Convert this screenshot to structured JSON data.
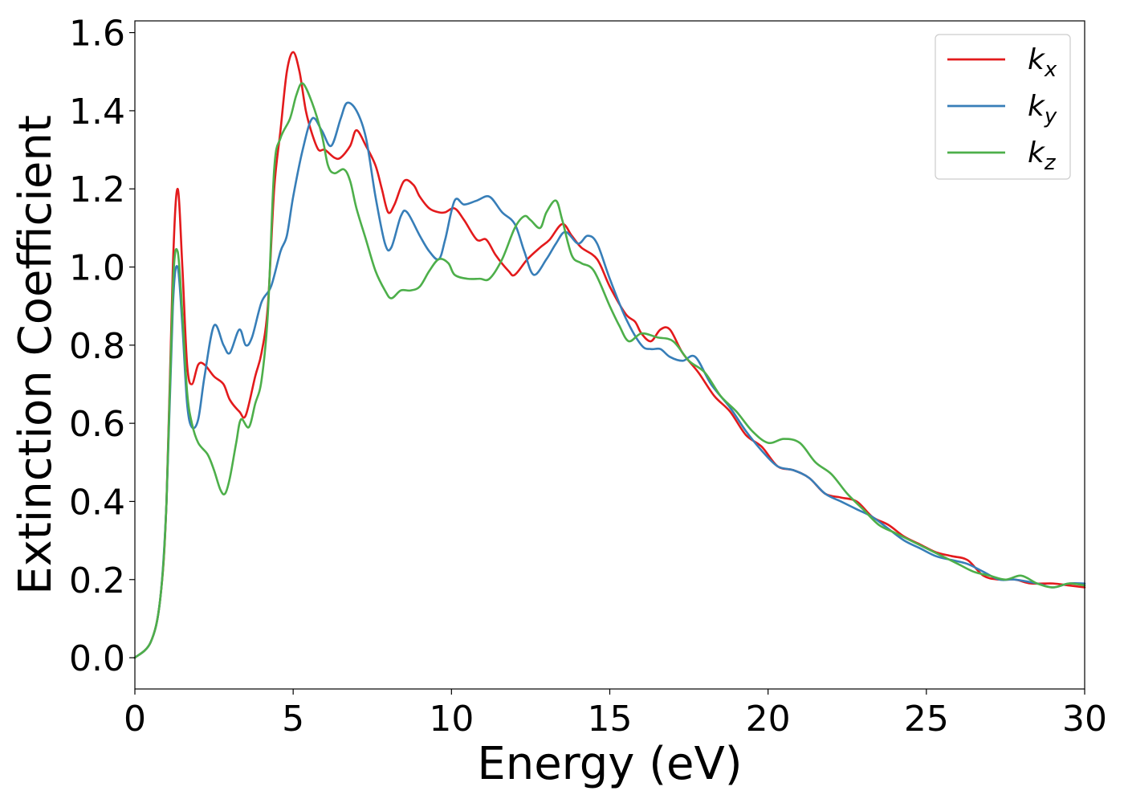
{
  "chart_data": {
    "type": "line",
    "xlabel": "Energy (eV)",
    "ylabel": "Extinction Coefficient",
    "xlim": [
      0,
      30
    ],
    "ylim": [
      -0.08,
      1.63
    ],
    "x_ticks": [
      "0",
      "5",
      "10",
      "15",
      "20",
      "25",
      "30"
    ],
    "y_ticks": [
      "0.0",
      "0.2",
      "0.4",
      "0.6",
      "0.8",
      "1.0",
      "1.2",
      "1.4",
      "1.6"
    ],
    "grid": false,
    "legend_position": "top-right",
    "series": [
      {
        "name": "k_x",
        "legend_base": "k",
        "legend_sub": "x",
        "color": "#e31a1c",
        "points": [
          [
            0,
            0.0
          ],
          [
            0.5,
            0.04
          ],
          [
            0.8,
            0.15
          ],
          [
            1.0,
            0.4
          ],
          [
            1.2,
            1.0
          ],
          [
            1.35,
            1.2
          ],
          [
            1.5,
            1.0
          ],
          [
            1.65,
            0.75
          ],
          [
            1.8,
            0.7
          ],
          [
            2.0,
            0.75
          ],
          [
            2.2,
            0.75
          ],
          [
            2.5,
            0.72
          ],
          [
            2.8,
            0.7
          ],
          [
            3.0,
            0.66
          ],
          [
            3.3,
            0.63
          ],
          [
            3.5,
            0.62
          ],
          [
            3.8,
            0.72
          ],
          [
            4.0,
            0.78
          ],
          [
            4.2,
            0.9
          ],
          [
            4.4,
            1.2
          ],
          [
            4.6,
            1.35
          ],
          [
            4.8,
            1.5
          ],
          [
            5.0,
            1.55
          ],
          [
            5.2,
            1.5
          ],
          [
            5.4,
            1.4
          ],
          [
            5.6,
            1.34
          ],
          [
            5.8,
            1.3
          ],
          [
            6.0,
            1.3
          ],
          [
            6.3,
            1.28
          ],
          [
            6.5,
            1.28
          ],
          [
            6.8,
            1.31
          ],
          [
            7.0,
            1.35
          ],
          [
            7.3,
            1.31
          ],
          [
            7.6,
            1.26
          ],
          [
            7.8,
            1.2
          ],
          [
            8.0,
            1.14
          ],
          [
            8.2,
            1.16
          ],
          [
            8.5,
            1.22
          ],
          [
            8.8,
            1.21
          ],
          [
            9.0,
            1.18
          ],
          [
            9.3,
            1.15
          ],
          [
            9.6,
            1.14
          ],
          [
            9.8,
            1.14
          ],
          [
            10.1,
            1.15
          ],
          [
            10.4,
            1.12
          ],
          [
            10.8,
            1.07
          ],
          [
            11.1,
            1.07
          ],
          [
            11.4,
            1.03
          ],
          [
            11.8,
            0.99
          ],
          [
            12.0,
            0.98
          ],
          [
            12.4,
            1.02
          ],
          [
            12.8,
            1.05
          ],
          [
            13.1,
            1.07
          ],
          [
            13.5,
            1.11
          ],
          [
            13.8,
            1.08
          ],
          [
            14.1,
            1.05
          ],
          [
            14.6,
            1.02
          ],
          [
            15.0,
            0.95
          ],
          [
            15.5,
            0.88
          ],
          [
            15.8,
            0.86
          ],
          [
            16.0,
            0.83
          ],
          [
            16.3,
            0.81
          ],
          [
            16.6,
            0.84
          ],
          [
            16.9,
            0.84
          ],
          [
            17.3,
            0.78
          ],
          [
            17.8,
            0.73
          ],
          [
            18.3,
            0.67
          ],
          [
            18.8,
            0.63
          ],
          [
            19.3,
            0.57
          ],
          [
            19.8,
            0.54
          ],
          [
            20.3,
            0.49
          ],
          [
            20.8,
            0.48
          ],
          [
            21.3,
            0.46
          ],
          [
            21.8,
            0.42
          ],
          [
            22.3,
            0.41
          ],
          [
            22.8,
            0.4
          ],
          [
            23.3,
            0.36
          ],
          [
            23.8,
            0.34
          ],
          [
            24.3,
            0.31
          ],
          [
            24.8,
            0.29
          ],
          [
            25.3,
            0.27
          ],
          [
            25.8,
            0.26
          ],
          [
            26.3,
            0.25
          ],
          [
            26.8,
            0.21
          ],
          [
            27.3,
            0.2
          ],
          [
            27.8,
            0.2
          ],
          [
            28.3,
            0.19
          ],
          [
            29.0,
            0.19
          ],
          [
            29.5,
            0.185
          ],
          [
            30,
            0.18
          ]
        ]
      },
      {
        "name": "k_y",
        "legend_base": "k",
        "legend_sub": "y",
        "color": "#377eb8",
        "points": [
          [
            0,
            0.0
          ],
          [
            0.5,
            0.04
          ],
          [
            0.8,
            0.15
          ],
          [
            1.0,
            0.4
          ],
          [
            1.2,
            0.9
          ],
          [
            1.35,
            1.0
          ],
          [
            1.5,
            0.85
          ],
          [
            1.65,
            0.65
          ],
          [
            1.8,
            0.59
          ],
          [
            2.0,
            0.61
          ],
          [
            2.2,
            0.72
          ],
          [
            2.5,
            0.85
          ],
          [
            2.8,
            0.8
          ],
          [
            3.0,
            0.78
          ],
          [
            3.3,
            0.84
          ],
          [
            3.5,
            0.8
          ],
          [
            3.7,
            0.82
          ],
          [
            4.0,
            0.91
          ],
          [
            4.3,
            0.95
          ],
          [
            4.6,
            1.04
          ],
          [
            4.8,
            1.08
          ],
          [
            5.0,
            1.18
          ],
          [
            5.3,
            1.3
          ],
          [
            5.6,
            1.38
          ],
          [
            5.9,
            1.35
          ],
          [
            6.2,
            1.31
          ],
          [
            6.5,
            1.38
          ],
          [
            6.7,
            1.42
          ],
          [
            7.0,
            1.4
          ],
          [
            7.3,
            1.33
          ],
          [
            7.6,
            1.18
          ],
          [
            7.9,
            1.06
          ],
          [
            8.1,
            1.05
          ],
          [
            8.4,
            1.13
          ],
          [
            8.6,
            1.14
          ],
          [
            9.0,
            1.08
          ],
          [
            9.3,
            1.04
          ],
          [
            9.6,
            1.02
          ],
          [
            9.8,
            1.07
          ],
          [
            10.1,
            1.17
          ],
          [
            10.4,
            1.16
          ],
          [
            10.8,
            1.17
          ],
          [
            11.2,
            1.18
          ],
          [
            11.6,
            1.14
          ],
          [
            12.0,
            1.11
          ],
          [
            12.3,
            1.04
          ],
          [
            12.6,
            0.98
          ],
          [
            13.0,
            1.02
          ],
          [
            13.3,
            1.06
          ],
          [
            13.6,
            1.09
          ],
          [
            14.0,
            1.06
          ],
          [
            14.3,
            1.08
          ],
          [
            14.6,
            1.06
          ],
          [
            15.0,
            0.97
          ],
          [
            15.5,
            0.87
          ],
          [
            16.0,
            0.8
          ],
          [
            16.3,
            0.79
          ],
          [
            16.6,
            0.79
          ],
          [
            16.9,
            0.77
          ],
          [
            17.3,
            0.76
          ],
          [
            17.7,
            0.77
          ],
          [
            18.2,
            0.7
          ],
          [
            18.8,
            0.64
          ],
          [
            19.3,
            0.58
          ],
          [
            19.8,
            0.53
          ],
          [
            20.3,
            0.49
          ],
          [
            20.8,
            0.48
          ],
          [
            21.3,
            0.46
          ],
          [
            21.8,
            0.42
          ],
          [
            22.3,
            0.4
          ],
          [
            22.8,
            0.38
          ],
          [
            23.3,
            0.36
          ],
          [
            23.8,
            0.33
          ],
          [
            24.3,
            0.3
          ],
          [
            24.8,
            0.28
          ],
          [
            25.3,
            0.26
          ],
          [
            25.8,
            0.25
          ],
          [
            26.3,
            0.24
          ],
          [
            26.8,
            0.22
          ],
          [
            27.3,
            0.2
          ],
          [
            27.8,
            0.2
          ],
          [
            28.5,
            0.19
          ],
          [
            29.0,
            0.18
          ],
          [
            29.5,
            0.19
          ],
          [
            30,
            0.19
          ]
        ]
      },
      {
        "name": "k_z",
        "legend_base": "k",
        "legend_sub": "z",
        "color": "#4daf4a",
        "points": [
          [
            0,
            0.0
          ],
          [
            0.5,
            0.04
          ],
          [
            0.8,
            0.15
          ],
          [
            1.0,
            0.4
          ],
          [
            1.2,
            0.95
          ],
          [
            1.35,
            1.04
          ],
          [
            1.5,
            0.88
          ],
          [
            1.65,
            0.68
          ],
          [
            1.8,
            0.6
          ],
          [
            2.0,
            0.55
          ],
          [
            2.3,
            0.52
          ],
          [
            2.5,
            0.48
          ],
          [
            2.7,
            0.43
          ],
          [
            2.85,
            0.42
          ],
          [
            3.0,
            0.46
          ],
          [
            3.2,
            0.55
          ],
          [
            3.35,
            0.61
          ],
          [
            3.6,
            0.59
          ],
          [
            3.8,
            0.65
          ],
          [
            4.0,
            0.71
          ],
          [
            4.2,
            0.88
          ],
          [
            4.4,
            1.25
          ],
          [
            4.6,
            1.33
          ],
          [
            4.9,
            1.38
          ],
          [
            5.1,
            1.44
          ],
          [
            5.3,
            1.47
          ],
          [
            5.6,
            1.42
          ],
          [
            5.9,
            1.34
          ],
          [
            6.1,
            1.26
          ],
          [
            6.3,
            1.24
          ],
          [
            6.6,
            1.25
          ],
          [
            6.8,
            1.22
          ],
          [
            7.0,
            1.15
          ],
          [
            7.3,
            1.07
          ],
          [
            7.6,
            0.99
          ],
          [
            7.9,
            0.94
          ],
          [
            8.1,
            0.92
          ],
          [
            8.4,
            0.94
          ],
          [
            8.7,
            0.94
          ],
          [
            9.0,
            0.95
          ],
          [
            9.3,
            0.99
          ],
          [
            9.6,
            1.02
          ],
          [
            9.9,
            1.01
          ],
          [
            10.1,
            0.98
          ],
          [
            10.5,
            0.97
          ],
          [
            10.9,
            0.97
          ],
          [
            11.2,
            0.97
          ],
          [
            11.6,
            1.02
          ],
          [
            12.0,
            1.1
          ],
          [
            12.3,
            1.13
          ],
          [
            12.5,
            1.12
          ],
          [
            12.8,
            1.1
          ],
          [
            13.0,
            1.14
          ],
          [
            13.3,
            1.17
          ],
          [
            13.5,
            1.12
          ],
          [
            13.8,
            1.03
          ],
          [
            14.1,
            1.01
          ],
          [
            14.5,
            0.99
          ],
          [
            15.0,
            0.9
          ],
          [
            15.3,
            0.85
          ],
          [
            15.6,
            0.81
          ],
          [
            16.0,
            0.83
          ],
          [
            16.5,
            0.82
          ],
          [
            17.0,
            0.81
          ],
          [
            17.5,
            0.76
          ],
          [
            18.0,
            0.73
          ],
          [
            18.5,
            0.67
          ],
          [
            19.0,
            0.63
          ],
          [
            19.5,
            0.58
          ],
          [
            20.0,
            0.55
          ],
          [
            20.5,
            0.56
          ],
          [
            21.0,
            0.55
          ],
          [
            21.5,
            0.5
          ],
          [
            22.0,
            0.47
          ],
          [
            22.5,
            0.42
          ],
          [
            23.0,
            0.38
          ],
          [
            23.5,
            0.34
          ],
          [
            24.0,
            0.32
          ],
          [
            24.5,
            0.3
          ],
          [
            25.0,
            0.28
          ],
          [
            25.5,
            0.26
          ],
          [
            26.0,
            0.24
          ],
          [
            26.5,
            0.22
          ],
          [
            27.0,
            0.21
          ],
          [
            27.5,
            0.2
          ],
          [
            28.0,
            0.21
          ],
          [
            28.5,
            0.19
          ],
          [
            29.0,
            0.18
          ],
          [
            29.5,
            0.19
          ],
          [
            30,
            0.185
          ]
        ]
      }
    ]
  }
}
